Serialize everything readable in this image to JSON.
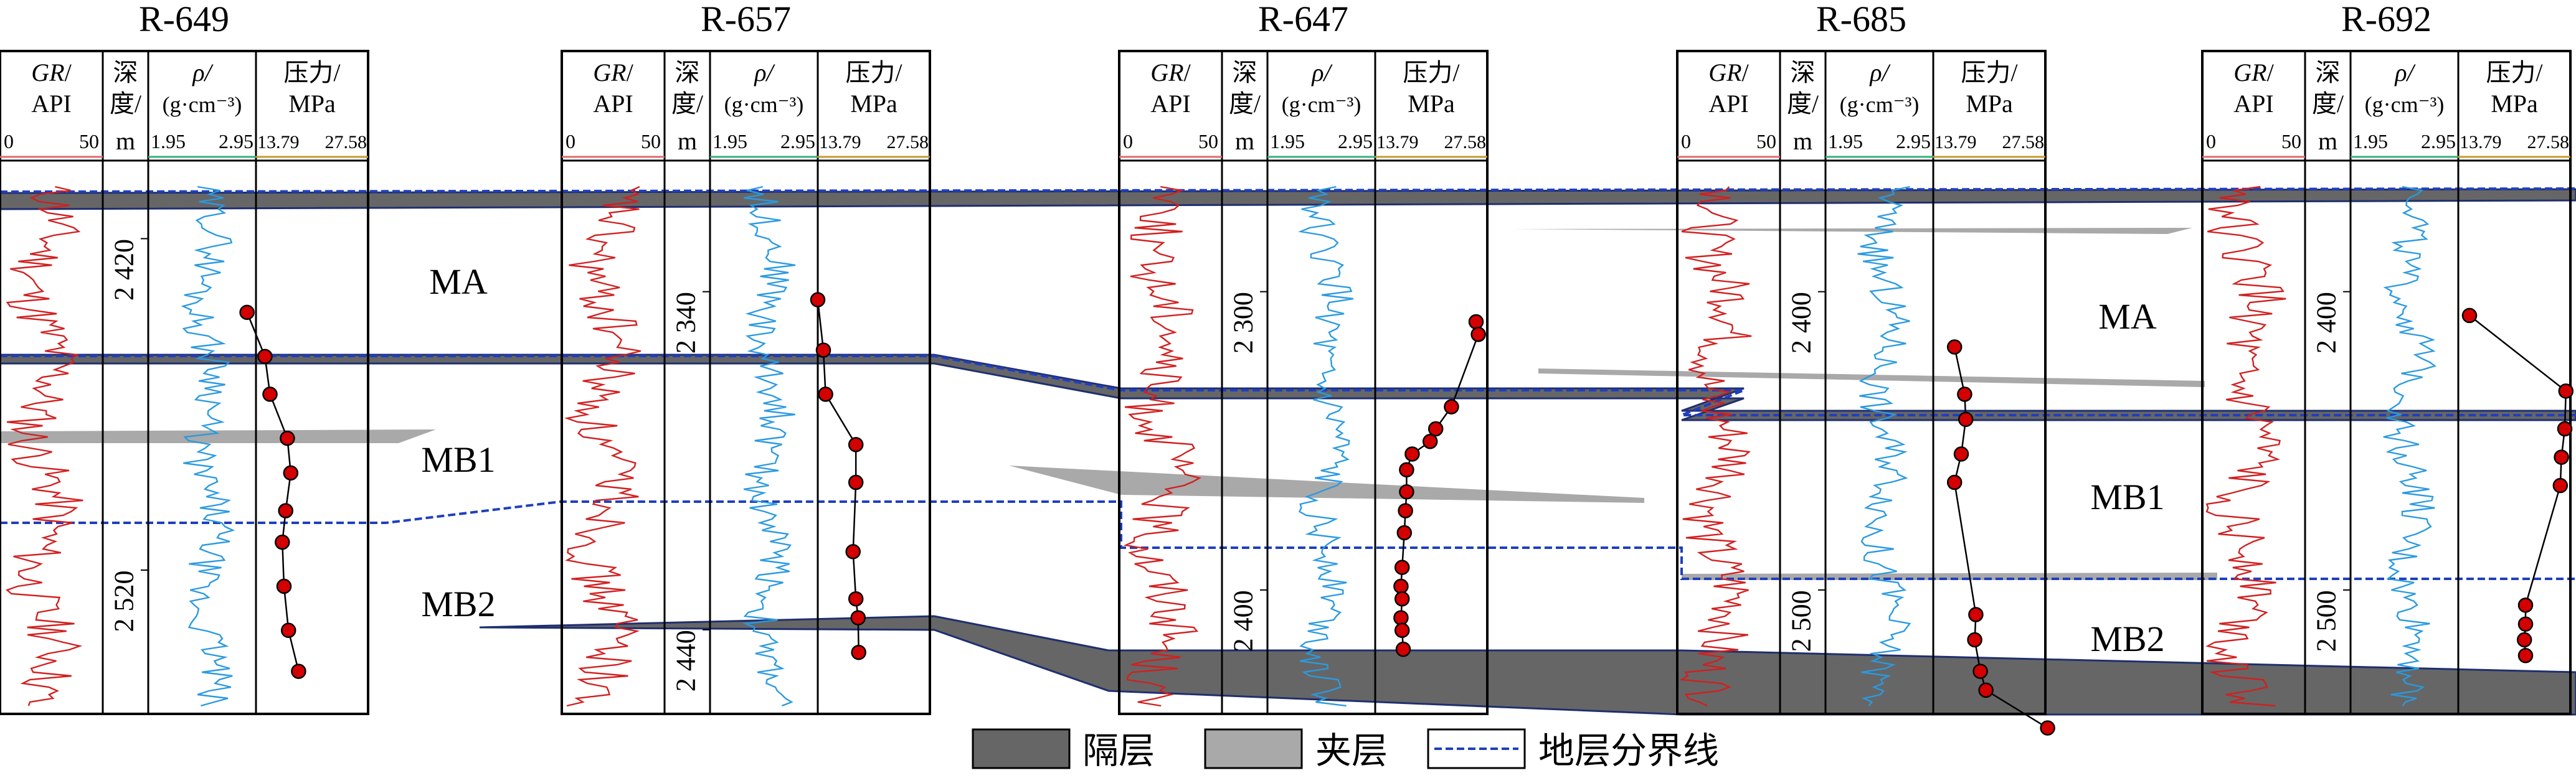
{
  "colors": {
    "barrier": "#666666",
    "interlayer": "#a9a9a9",
    "boundary": "#1f3fbf",
    "gr": "#d21f1f",
    "density": "#2a9ae0",
    "pressure_marker": "#d40000",
    "gr_scale": "#e46a6a",
    "density_scale": "#34b07a",
    "pressure_scale": "#c79a2a"
  },
  "headers": {
    "gr_italic": "GR",
    "gr_slash": "/",
    "gr_unit": "API",
    "depth_line1": "深",
    "depth_line2": "度/",
    "depth_unit": "m",
    "rho": "ρ/",
    "rho_unit": "(g·cm⁻³)",
    "pressure": "压力/",
    "pressure_unit": "MPa"
  },
  "scales": {
    "gr": [
      "0",
      "50"
    ],
    "density": [
      "1.95",
      "2.95"
    ],
    "pressure": [
      "13.79",
      "27.58"
    ]
  },
  "wells": [
    {
      "name": "R-649",
      "depths": [
        "2 420",
        "2 520"
      ],
      "pressure_points": [
        [
          -0.08,
          0.415
        ],
        [
          0.08,
          0.485
        ],
        [
          0.125,
          0.545
        ],
        [
          0.28,
          0.615
        ],
        [
          0.31,
          0.67
        ],
        [
          0.265,
          0.73
        ],
        [
          0.235,
          0.78
        ],
        [
          0.25,
          0.85
        ],
        [
          0.29,
          0.92
        ],
        [
          0.38,
          0.985
        ]
      ]
    },
    {
      "name": "R-657",
      "depths": [
        "2 340",
        "2 440"
      ],
      "pressure_points": [
        [
          0.0,
          0.395
        ],
        [
          0.05,
          0.475
        ],
        [
          0.07,
          0.545
        ],
        [
          0.34,
          0.625
        ],
        [
          0.34,
          0.685
        ],
        [
          0.315,
          0.795
        ],
        [
          0.34,
          0.87
        ],
        [
          0.36,
          0.9
        ],
        [
          0.365,
          0.955
        ]
      ]
    },
    {
      "name": "R-647",
      "depths": [
        "2 300",
        "2 400"
      ],
      "pressure_points": [
        [
          0.9,
          0.43
        ],
        [
          0.92,
          0.45
        ],
        [
          0.68,
          0.565
        ],
        [
          0.54,
          0.6
        ],
        [
          0.49,
          0.62
        ],
        [
          0.33,
          0.64
        ],
        [
          0.28,
          0.665
        ],
        [
          0.28,
          0.7
        ],
        [
          0.27,
          0.73
        ],
        [
          0.26,
          0.765
        ],
        [
          0.24,
          0.82
        ],
        [
          0.23,
          0.85
        ],
        [
          0.24,
          0.87
        ],
        [
          0.23,
          0.9
        ],
        [
          0.24,
          0.92
        ],
        [
          0.25,
          0.95
        ]
      ]
    },
    {
      "name": "R-685",
      "depths": [
        "2 400",
        "2 500"
      ],
      "pressure_points": [
        [
          0.19,
          0.47
        ],
        [
          0.28,
          0.545
        ],
        [
          0.29,
          0.585
        ],
        [
          0.25,
          0.64
        ],
        [
          0.19,
          0.685
        ],
        [
          0.38,
          0.895
        ],
        [
          0.37,
          0.935
        ],
        [
          0.42,
          0.985
        ],
        [
          0.47,
          1.015
        ],
        [
          1.02,
          1.075
        ]
      ]
    },
    {
      "name": "R-692",
      "depths": [
        "2 400",
        "2 500"
      ],
      "pressure_points": [
        [
          0.1,
          0.42
        ],
        [
          0.96,
          0.54
        ],
        [
          0.95,
          0.6
        ],
        [
          0.92,
          0.645
        ],
        [
          0.91,
          0.69
        ],
        [
          0.6,
          0.88
        ],
        [
          0.6,
          0.91
        ],
        [
          0.59,
          0.935
        ],
        [
          0.6,
          0.96
        ]
      ]
    }
  ],
  "zones": {
    "ma": "MA",
    "mb1": "MB1",
    "mb2": "MB2"
  },
  "legend": {
    "barrier": "隔层",
    "interlayer": "夹层",
    "boundary": "地层分界线"
  }
}
